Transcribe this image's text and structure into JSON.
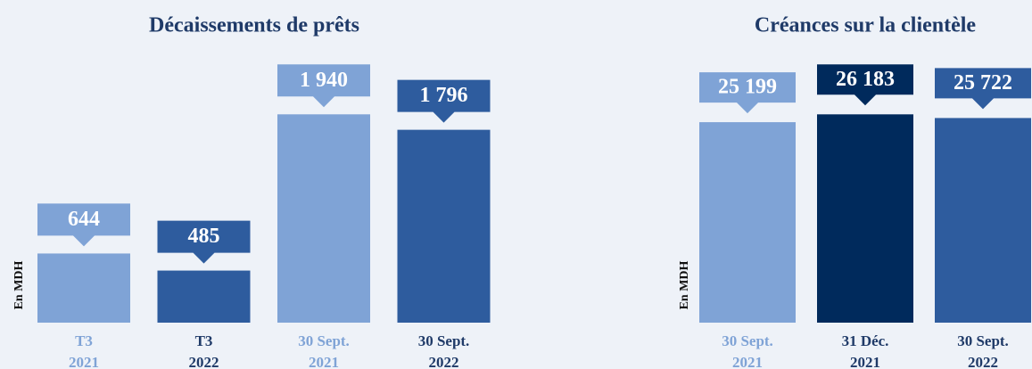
{
  "chart_data": [
    {
      "type": "bar",
      "title": "Décaissements de prêts",
      "ylabel": "En MDH",
      "categories": [
        [
          "T3",
          "2021"
        ],
        [
          "T3",
          "2022"
        ],
        [
          "30 Sept.",
          "2021"
        ],
        [
          "30 Sept.",
          "2022"
        ]
      ],
      "values": [
        644,
        485,
        1940,
        1796
      ],
      "value_labels": [
        "644",
        "485",
        "1 940",
        "1 796"
      ],
      "colors": [
        "#7fa3d6",
        "#2e5c9e",
        "#7fa3d6",
        "#2e5c9e"
      ],
      "ylim": [
        0,
        2100
      ]
    },
    {
      "type": "bar",
      "title": "Créances sur la clientèle",
      "ylabel": "En MDH",
      "categories": [
        [
          "30 Sept.",
          "2021"
        ],
        [
          "31 Déc.",
          "2021"
        ],
        [
          "30 Sept.",
          "2022"
        ]
      ],
      "values": [
        25199,
        26183,
        25722
      ],
      "value_labels": [
        "25 199",
        "26 183",
        "25 722"
      ],
      "colors": [
        "#7fa3d6",
        "#002a5c",
        "#2e5c9e"
      ],
      "ylim": [
        0,
        27000
      ]
    }
  ]
}
